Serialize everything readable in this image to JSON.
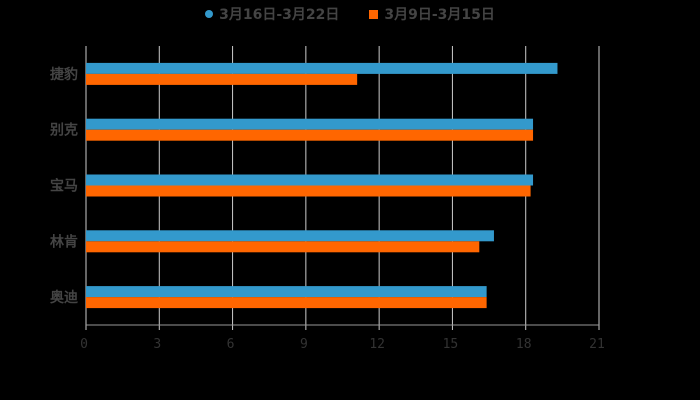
{
  "legend": [
    {
      "label": "3月16日-3月22日",
      "color": "#3399CC",
      "shape": "circle"
    },
    {
      "label": "3月9日-3月15日",
      "color": "#FF6600",
      "shape": "square"
    }
  ],
  "colors": {
    "series1": "#3399CC",
    "series2": "#FF6600",
    "grid": "#CCCCCC",
    "background": "#000000"
  },
  "chart_data": {
    "type": "bar",
    "orientation": "horizontal",
    "title": "",
    "categories": [
      "捷豹",
      "别克",
      "宝马",
      "林肯",
      "奥迪"
    ],
    "series": [
      {
        "name": "3月16日-3月22日",
        "values": [
          19.3,
          18.3,
          18.3,
          16.7,
          16.4
        ]
      },
      {
        "name": "3月9日-3月15日",
        "values": [
          11.1,
          18.3,
          18.2,
          16.1,
          16.4
        ]
      }
    ],
    "xlabel": "",
    "ylabel": "",
    "xlim": [
      0,
      21
    ],
    "xticks": [
      "0",
      "3",
      "6",
      "9",
      "12",
      "15",
      "18",
      "21"
    ],
    "grid": true,
    "legend_position": "top"
  }
}
